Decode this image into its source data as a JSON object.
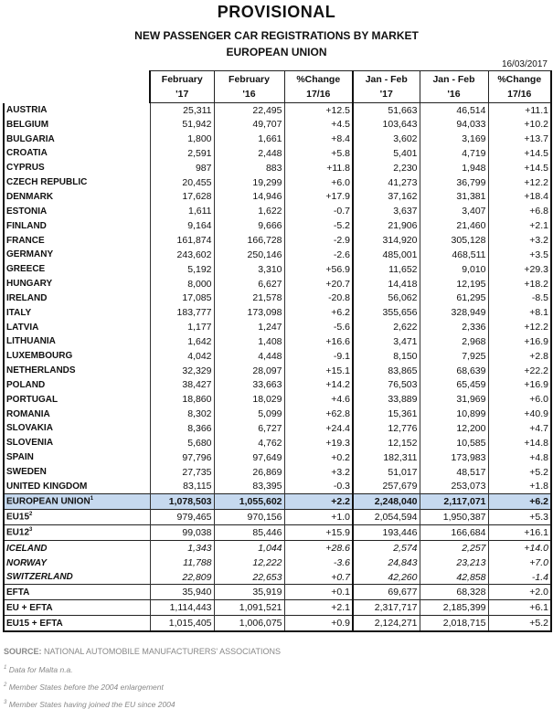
{
  "title": "PROVISIONAL",
  "subtitle": "NEW PASSENGER CAR REGISTRATIONS BY MARKET",
  "subtitle2": "EUROPEAN UNION",
  "date": "16/03/2017",
  "headers": [
    [
      "February",
      "'17"
    ],
    [
      "February",
      "'16"
    ],
    [
      "%Change",
      "17/16"
    ],
    [
      "Jan - Feb",
      "'17"
    ],
    [
      "Jan - Feb",
      "'16"
    ],
    [
      "%Change",
      "17/16"
    ]
  ],
  "rows": [
    {
      "label": "AUSTRIA",
      "v": [
        "25,311",
        "22,495",
        "+12.5",
        "51,663",
        "46,514",
        "+11.1"
      ]
    },
    {
      "label": "BELGIUM",
      "v": [
        "51,942",
        "49,707",
        "+4.5",
        "103,643",
        "94,033",
        "+10.2"
      ]
    },
    {
      "label": "BULGARIA",
      "v": [
        "1,800",
        "1,661",
        "+8.4",
        "3,602",
        "3,169",
        "+13.7"
      ]
    },
    {
      "label": "CROATIA",
      "v": [
        "2,591",
        "2,448",
        "+5.8",
        "5,401",
        "4,719",
        "+14.5"
      ]
    },
    {
      "label": "CYPRUS",
      "v": [
        "987",
        "883",
        "+11.8",
        "2,230",
        "1,948",
        "+14.5"
      ]
    },
    {
      "label": "CZECH REPUBLIC",
      "v": [
        "20,455",
        "19,299",
        "+6.0",
        "41,273",
        "36,799",
        "+12.2"
      ]
    },
    {
      "label": "DENMARK",
      "v": [
        "17,628",
        "14,946",
        "+17.9",
        "37,162",
        "31,381",
        "+18.4"
      ]
    },
    {
      "label": "ESTONIA",
      "v": [
        "1,611",
        "1,622",
        "-0.7",
        "3,637",
        "3,407",
        "+6.8"
      ]
    },
    {
      "label": "FINLAND",
      "v": [
        "9,164",
        "9,666",
        "-5.2",
        "21,906",
        "21,460",
        "+2.1"
      ]
    },
    {
      "label": "FRANCE",
      "v": [
        "161,874",
        "166,728",
        "-2.9",
        "314,920",
        "305,128",
        "+3.2"
      ]
    },
    {
      "label": "GERMANY",
      "v": [
        "243,602",
        "250,146",
        "-2.6",
        "485,001",
        "468,511",
        "+3.5"
      ]
    },
    {
      "label": "GREECE",
      "v": [
        "5,192",
        "3,310",
        "+56.9",
        "11,652",
        "9,010",
        "+29.3"
      ]
    },
    {
      "label": "HUNGARY",
      "v": [
        "8,000",
        "6,627",
        "+20.7",
        "14,418",
        "12,195",
        "+18.2"
      ]
    },
    {
      "label": "IRELAND",
      "v": [
        "17,085",
        "21,578",
        "-20.8",
        "56,062",
        "61,295",
        "-8.5"
      ]
    },
    {
      "label": "ITALY",
      "v": [
        "183,777",
        "173,098",
        "+6.2",
        "355,656",
        "328,949",
        "+8.1"
      ]
    },
    {
      "label": "LATVIA",
      "v": [
        "1,177",
        "1,247",
        "-5.6",
        "2,622",
        "2,336",
        "+12.2"
      ]
    },
    {
      "label": "LITHUANIA",
      "v": [
        "1,642",
        "1,408",
        "+16.6",
        "3,471",
        "2,968",
        "+16.9"
      ]
    },
    {
      "label": "LUXEMBOURG",
      "v": [
        "4,042",
        "4,448",
        "-9.1",
        "8,150",
        "7,925",
        "+2.8"
      ]
    },
    {
      "label": "NETHERLANDS",
      "v": [
        "32,329",
        "28,097",
        "+15.1",
        "83,865",
        "68,639",
        "+22.2"
      ]
    },
    {
      "label": "POLAND",
      "v": [
        "38,427",
        "33,663",
        "+14.2",
        "76,503",
        "65,459",
        "+16.9"
      ]
    },
    {
      "label": "PORTUGAL",
      "v": [
        "18,860",
        "18,029",
        "+4.6",
        "33,889",
        "31,969",
        "+6.0"
      ]
    },
    {
      "label": "ROMANIA",
      "v": [
        "8,302",
        "5,099",
        "+62.8",
        "15,361",
        "10,899",
        "+40.9"
      ]
    },
    {
      "label": "SLOVAKIA",
      "v": [
        "8,366",
        "6,727",
        "+24.4",
        "12,776",
        "12,200",
        "+4.7"
      ]
    },
    {
      "label": "SLOVENIA",
      "v": [
        "5,680",
        "4,762",
        "+19.3",
        "12,152",
        "10,585",
        "+14.8"
      ]
    },
    {
      "label": "SPAIN",
      "v": [
        "97,796",
        "97,649",
        "+0.2",
        "182,311",
        "173,983",
        "+4.8"
      ]
    },
    {
      "label": "SWEDEN",
      "v": [
        "27,735",
        "26,869",
        "+3.2",
        "51,017",
        "48,517",
        "+5.2"
      ]
    },
    {
      "label": "UNITED KINGDOM",
      "v": [
        "83,115",
        "83,395",
        "-0.3",
        "257,679",
        "253,073",
        "+1.8"
      ]
    },
    {
      "label": "EUROPEAN UNION",
      "sup": "1",
      "v": [
        "1,078,503",
        "1,055,602",
        "+2.2",
        "2,248,040",
        "2,117,071",
        "+6.2"
      ],
      "style": "eu grp"
    },
    {
      "label": "EU15",
      "sup": "2",
      "v": [
        "979,465",
        "970,156",
        "+1.0",
        "2,054,594",
        "1,950,387",
        "+5.3"
      ],
      "style": "grp"
    },
    {
      "label": "EU12",
      "sup": "3",
      "v": [
        "99,038",
        "85,446",
        "+15.9",
        "193,446",
        "166,684",
        "+16.1"
      ],
      "style": "grp"
    },
    {
      "label": "ICELAND",
      "v": [
        "1,343",
        "1,044",
        "+28.6",
        "2,574",
        "2,257",
        "+14.0"
      ],
      "style": "grp it"
    },
    {
      "label": "NORWAY",
      "v": [
        "11,788",
        "12,222",
        "-3.6",
        "24,843",
        "23,213",
        "+7.0"
      ],
      "style": "it"
    },
    {
      "label": "SWITZERLAND",
      "v": [
        "22,809",
        "22,653",
        "+0.7",
        "42,260",
        "42,858",
        "-1.4"
      ],
      "style": "it"
    },
    {
      "label": "EFTA",
      "v": [
        "35,940",
        "35,919",
        "+0.1",
        "69,677",
        "68,328",
        "+2.0"
      ],
      "style": "grp"
    },
    {
      "label": "EU + EFTA",
      "v": [
        "1,114,443",
        "1,091,521",
        "+2.1",
        "2,317,717",
        "2,185,399",
        "+6.1"
      ],
      "style": "grp"
    },
    {
      "label": "EU15 + EFTA",
      "v": [
        "1,015,405",
        "1,006,075",
        "+0.9",
        "2,124,271",
        "2,018,715",
        "+5.2"
      ],
      "style": "grp last"
    }
  ],
  "footer": {
    "source_label": "SOURCE:",
    "source": "NATIONAL AUTOMOBILE MANUFACTURERS' ASSOCIATIONS",
    "notes": [
      {
        "sup": "1",
        "text": "Data for Malta n.a."
      },
      {
        "sup": "2",
        "text": "Member States before the 2004 enlargement"
      },
      {
        "sup": "3",
        "text": "Member States having joined the EU since 2004"
      }
    ]
  }
}
